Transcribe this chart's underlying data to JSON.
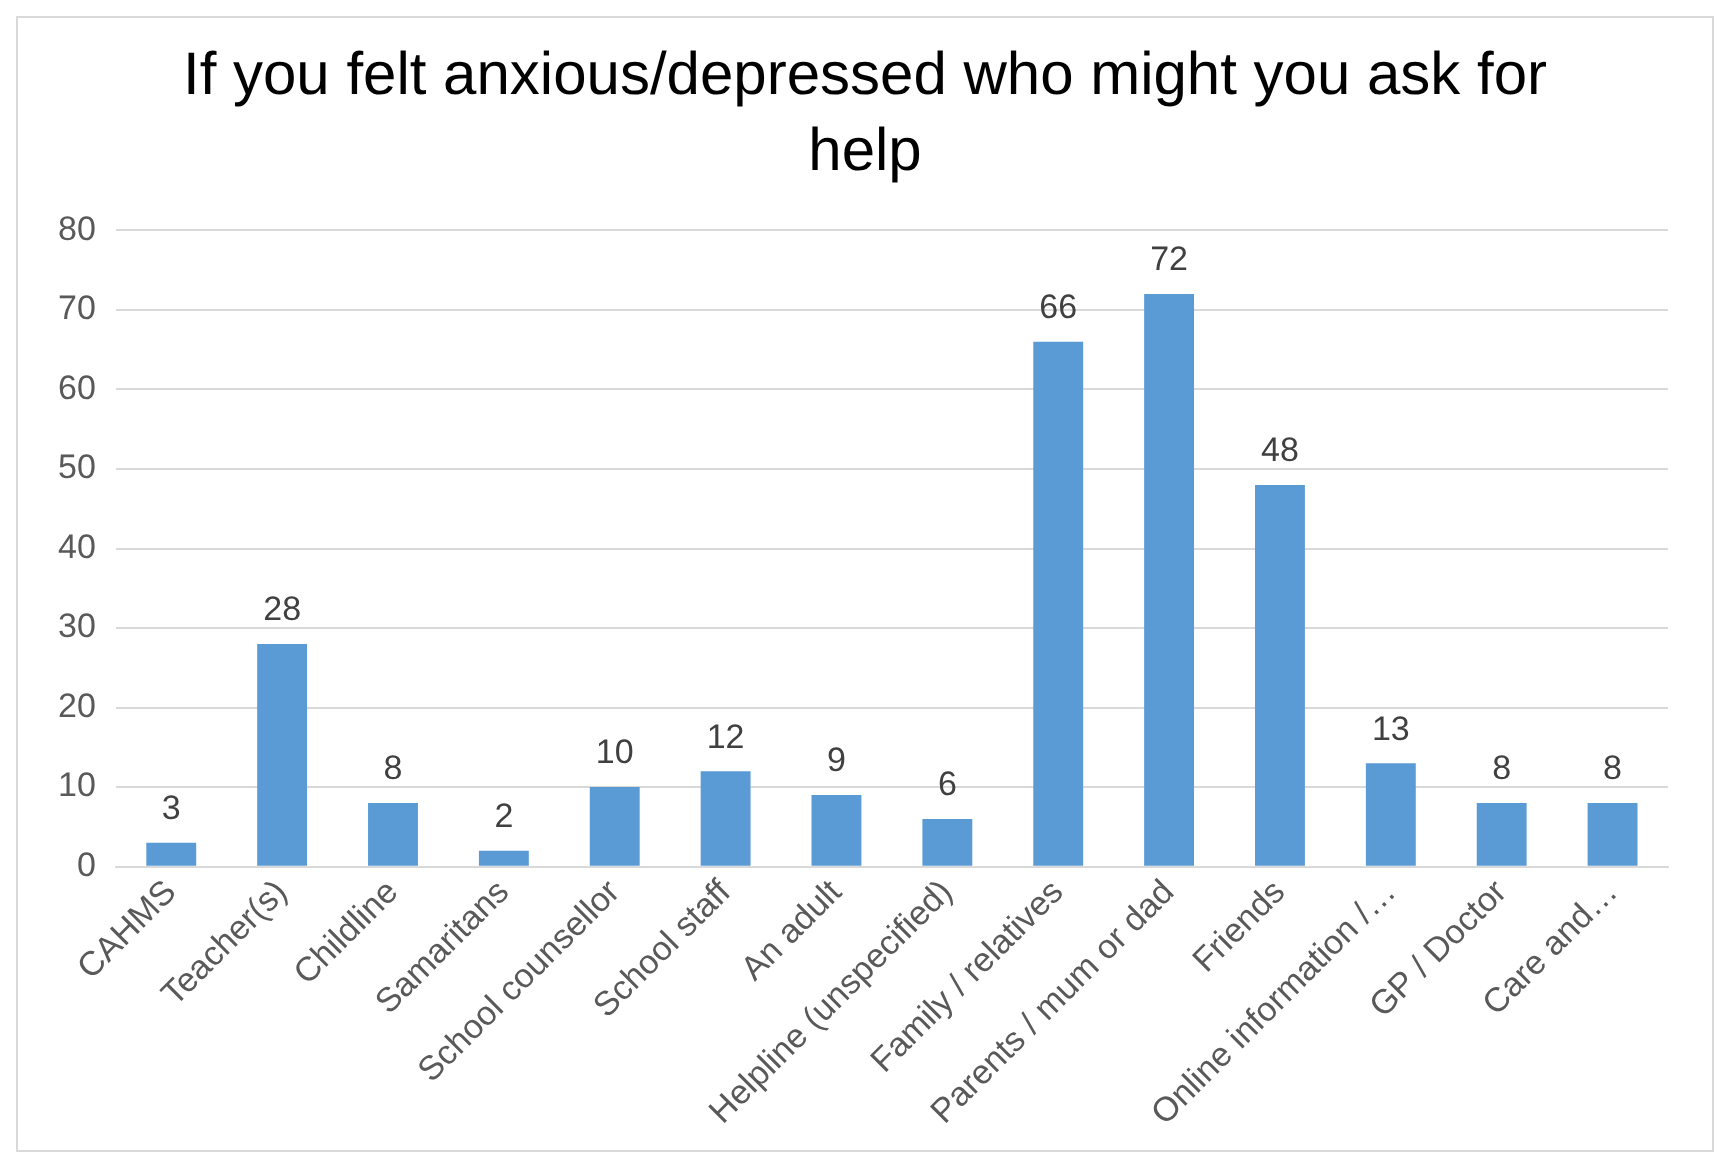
{
  "chart_data": {
    "type": "bar",
    "title": "If you felt anxious/depressed who might you ask for help",
    "categories": [
      "CAHMS",
      "Teacher(s)",
      "Childline",
      "Samaritans",
      "School counsellor",
      "School staff",
      "An adult",
      "Helpline (unspecified)",
      "Family / relatives",
      "Parents / mum or dad",
      "Friends",
      "Online information /…",
      "GP / Doctor",
      "Care and…"
    ],
    "values": [
      3,
      28,
      8,
      2,
      10,
      12,
      9,
      6,
      66,
      72,
      48,
      13,
      8,
      8
    ],
    "color": "#5b9bd5",
    "ylim": [
      0,
      80
    ],
    "yticks": [
      0,
      10,
      20,
      30,
      40,
      50,
      60,
      70,
      80
    ],
    "grid": "y",
    "legend": false,
    "data_labels": true
  }
}
